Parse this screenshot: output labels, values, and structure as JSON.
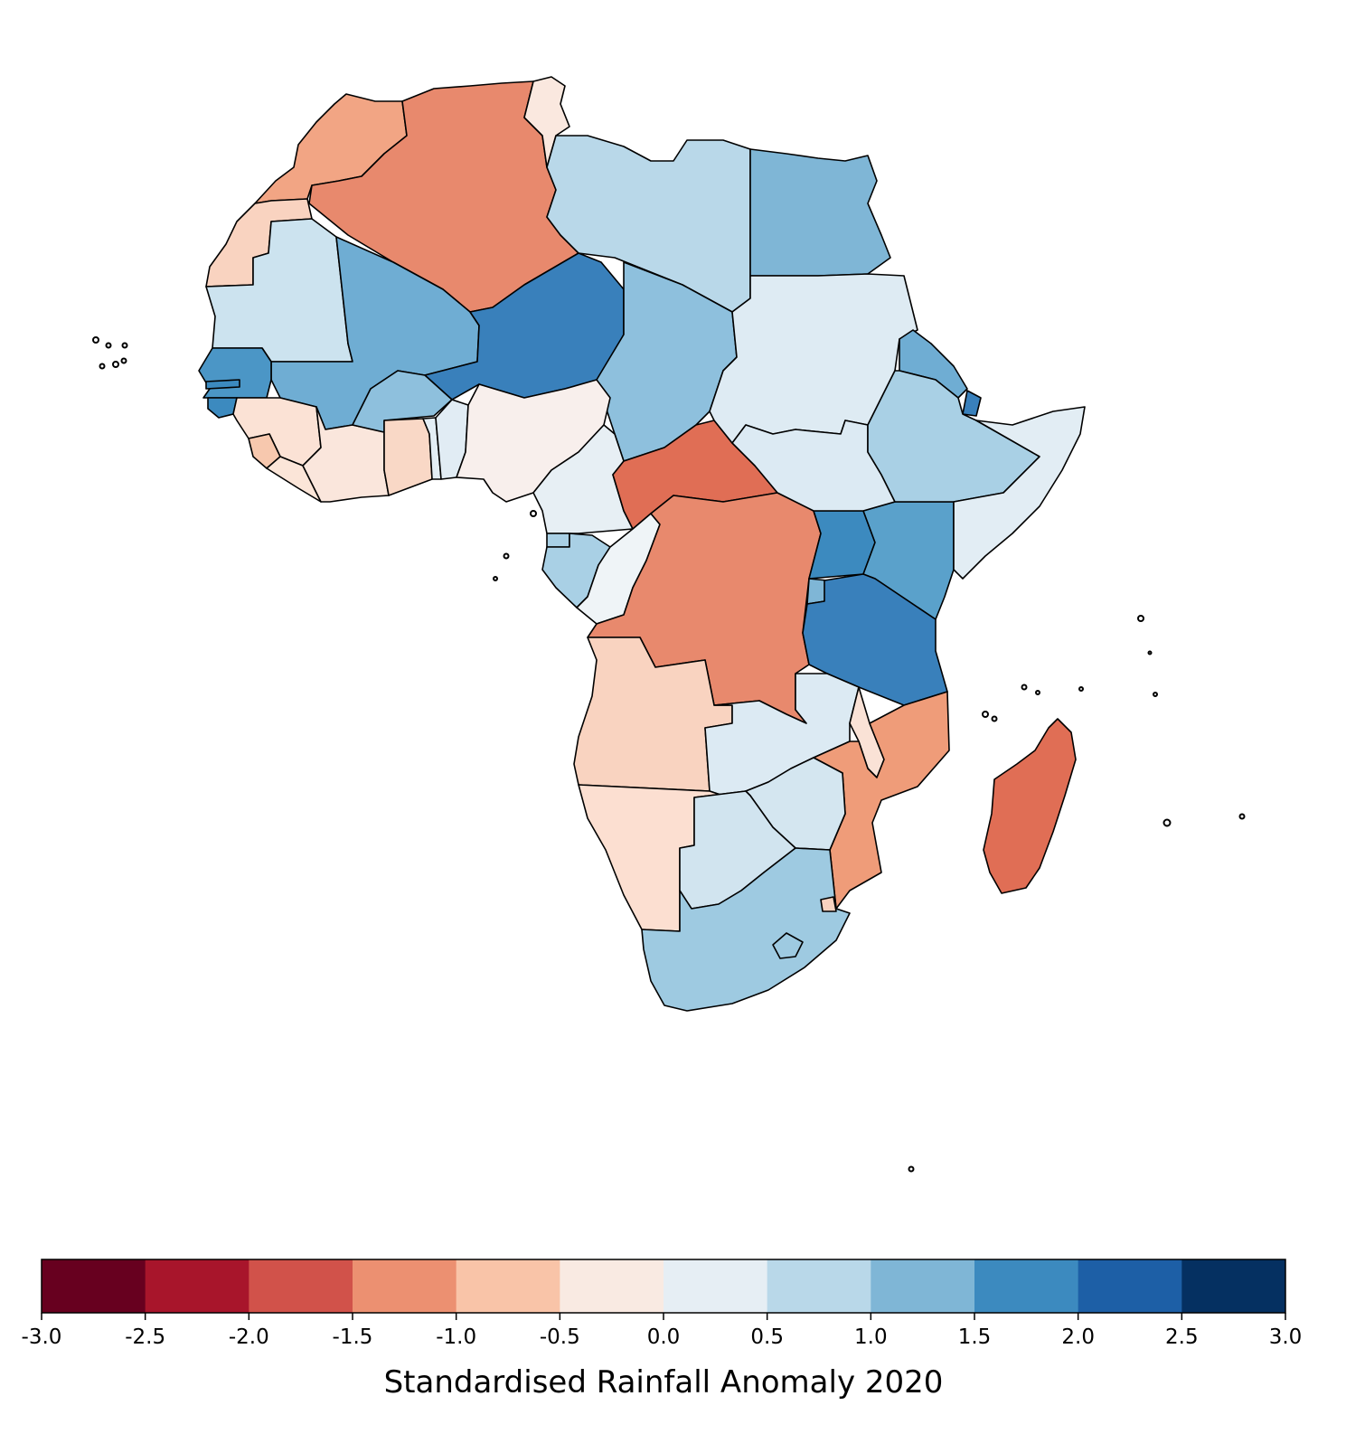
{
  "colorbar": {
    "label": "Standardised Rainfall Anomaly 2020",
    "ticks": [
      "-3.0",
      "-2.5",
      "-2.0",
      "-1.5",
      "-1.0",
      "-0.5",
      "0.0",
      "0.5",
      "1.0",
      "1.5",
      "2.0",
      "2.5",
      "3.0"
    ],
    "bins": [
      {
        "range": [
          -3.0,
          -2.5
        ],
        "color": "#67001f"
      },
      {
        "range": [
          -2.5,
          -2.0
        ],
        "color": "#a8152b"
      },
      {
        "range": [
          -2.0,
          -1.5
        ],
        "color": "#d1524a"
      },
      {
        "range": [
          -1.5,
          -1.0
        ],
        "color": "#ec9071"
      },
      {
        "range": [
          -1.0,
          -0.5
        ],
        "color": "#f9c4a8"
      },
      {
        "range": [
          -0.5,
          0.0
        ],
        "color": "#f9eae2"
      },
      {
        "range": [
          0.0,
          0.5
        ],
        "color": "#e6eef4"
      },
      {
        "range": [
          0.5,
          1.0
        ],
        "color": "#b9d8e9"
      },
      {
        "range": [
          1.0,
          1.5
        ],
        "color": "#7fb6d6"
      },
      {
        "range": [
          1.5,
          2.0
        ],
        "color": "#3c8abf"
      },
      {
        "range": [
          2.0,
          2.5
        ],
        "color": "#1d5fa6"
      },
      {
        "range": [
          2.5,
          3.0
        ],
        "color": "#053061"
      }
    ]
  },
  "map": {
    "region": "Africa",
    "projection": "PlateCarree",
    "border_color": "#000000",
    "colors": {
      "morocco": "#f2a584",
      "algeria": "#e8896d",
      "tunisia": "#fae8df",
      "libya": "#b9d8e9",
      "egypt": "#7fb6d6",
      "western_sahara": "#f9d3c0",
      "mauritania": "#cce3ef",
      "mali": "#6fadd3",
      "niger": "#3980bb",
      "chad": "#8ec0dd",
      "sudan": "#deebf3",
      "south_sudan": "#dceaf3",
      "ethiopia": "#a9d0e5",
      "eritrea": "#6fadd3",
      "djibouti": "#3980bb",
      "somalia": "#e2edf4",
      "kenya": "#5aa1cb",
      "uganda": "#3c8abf",
      "tanzania": "#3980bb",
      "rwanda_burundi": "#7fb6d6",
      "senegal": "#4b96c6",
      "gambia": "#3c8abf",
      "guinea_bissau": "#3c8abf",
      "guinea": "#fbe2d5",
      "sierra_leone": "#f7c8ae",
      "liberia": "#fbe5d8",
      "cote_divoire": "#fae6dc",
      "burkina_faso": "#8ec0dd",
      "ghana": "#f9d8c6",
      "togo": "#e3eef5",
      "benin": "#e1ecf4",
      "nigeria": "#f8efec",
      "cameroon": "#e7eff4",
      "car": "#e06e55",
      "eq_guinea": "#a9d0e5",
      "gabon": "#a9d0e5",
      "congo": "#eff4f7",
      "drc": "#e8896d",
      "angola": "#f9d3c0",
      "zambia": "#dceaf3",
      "malawi": "#fae2d6",
      "mozambique": "#ef9c79",
      "zimbabwe": "#d4e6f0",
      "botswana": "#d1e4ef",
      "namibia": "#fcdfd1",
      "south_africa": "#9ecae1",
      "lesotho": "#9ecae1",
      "eswatini": "#f9d3c0",
      "madagascar": "#e06e55"
    }
  }
}
